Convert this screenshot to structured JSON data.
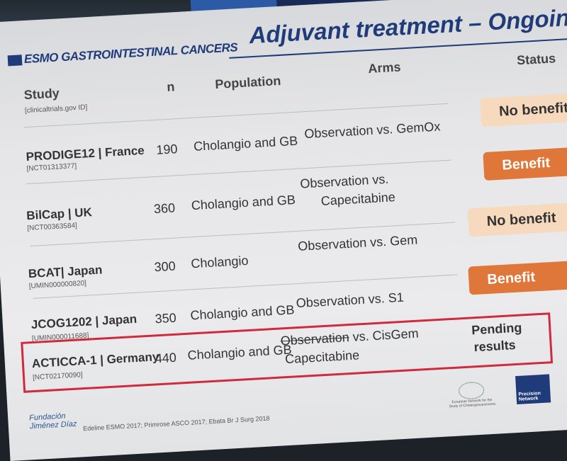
{
  "slide": {
    "logo_text": "ESMO GASTROINTESTINAL CANCERS",
    "title": "Adjuvant treatment – Ongoing",
    "headers": {
      "study": "Study",
      "study_sub": "[clinicaltrials.gov ID]",
      "n": "n",
      "population": "Population",
      "arms": "Arms",
      "status": "Status"
    },
    "rows": [
      {
        "study": "PRODIGE12 | France",
        "id": "[NCT01313377]",
        "n": "190",
        "population": "Cholangio and GB",
        "arms_line1": "Observation vs. GemOx",
        "arms_line2": "",
        "status": "No benefit"
      },
      {
        "study": "BilCap | UK",
        "id": "[NCT00363584]",
        "n": "360",
        "population": "Cholangio and GB",
        "arms_line1": "Observation vs.",
        "arms_line2": "Capecitabine",
        "status": "Benefit"
      },
      {
        "study": "BCAT| Japan",
        "id": "[UMIN000000820]",
        "n": "300",
        "population": "Cholangio",
        "arms_line1": "Observation vs. Gem",
        "arms_line2": "",
        "status": "No benefit"
      },
      {
        "study": "JCOG1202 | Japan",
        "id": "[UMIN000011688]",
        "n": "350",
        "population": "Cholangio and GB",
        "arms_line1": "Observation vs. S1",
        "arms_line2": "",
        "status": "Benefit"
      },
      {
        "study": "ACTICCA-1 | Germany",
        "id": "[NCT02170090]",
        "n": "440",
        "population": "Cholangio and GB",
        "arms_struck": "Observation",
        "arms_line1": " vs. CisGem",
        "arms_line2": "Capecitabine",
        "status_line1": "Pending",
        "status_line2": "results"
      }
    ],
    "footer": {
      "org_line1": "Fundación",
      "org_line2": "Jiménez Díaz",
      "references": "Edeline ESMO 2017; Primrose ASCO 2017; Ebata Br J Surg 2018",
      "network_caption": "European Network for the Study of Cholangiocarcinoma",
      "precision_label": "Precision Network"
    }
  },
  "colors": {
    "title": "#1f3b7a",
    "badge_no_benefit": "#f7d9bd",
    "badge_benefit": "#e0773a",
    "highlight_border": "#cf2b3d"
  }
}
